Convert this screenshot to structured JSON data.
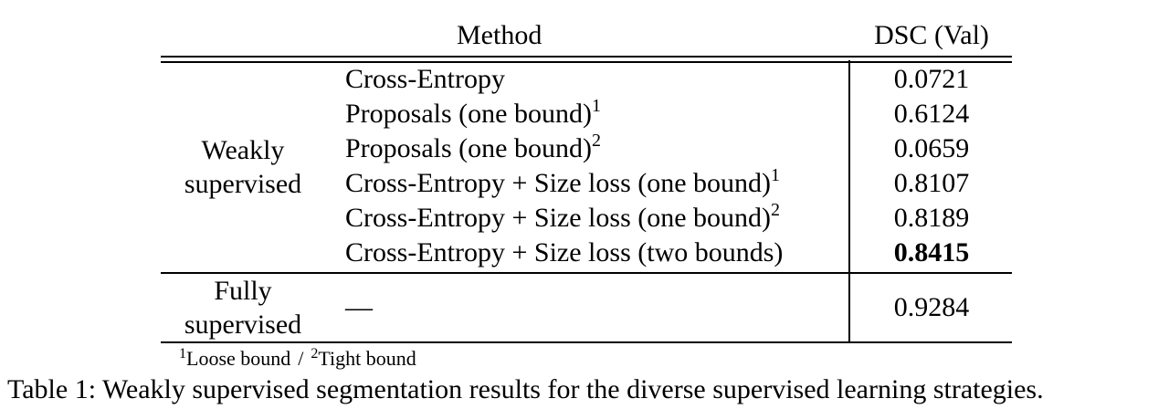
{
  "table": {
    "header": {
      "method": "Method",
      "dsc": "DSC (Val)"
    },
    "groups": [
      {
        "label": "Weakly supervised",
        "rows": [
          {
            "method": "Cross-Entropy",
            "dsc": "0.0721"
          },
          {
            "method": "Proposals (one bound)",
            "note": "1",
            "dsc": "0.6124"
          },
          {
            "method": "Proposals (one bound)",
            "note": "2",
            "dsc": "0.0659"
          },
          {
            "method": "Cross-Entropy + Size loss (one bound)",
            "note": "1",
            "dsc": "0.8107"
          },
          {
            "method": "Cross-Entropy + Size loss (one bound)",
            "note": "2",
            "dsc": "0.8189"
          },
          {
            "method": "Cross-Entropy + Size loss (two bounds)",
            "dsc": "0.8415",
            "bold": true
          }
        ]
      },
      {
        "label": "Fully supervised",
        "rows": [
          {
            "method": "—",
            "dsc": "0.9284"
          }
        ]
      }
    ],
    "footnote": {
      "notes": [
        {
          "mark": "1",
          "text": "Loose bound"
        },
        {
          "mark": "2",
          "text": "Tight bound"
        }
      ],
      "separator": "/"
    },
    "caption": "Table 1: Weakly supervised segmentation results for the diverse supervised learning strategies."
  }
}
